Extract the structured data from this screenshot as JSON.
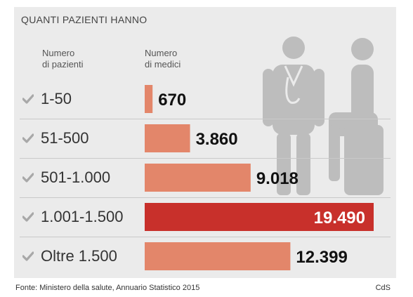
{
  "title": "QUANTI  PAZIENTI HANNO",
  "headers": {
    "patients": "Numero\ndi pazienti",
    "doctors": "Numero\ndi medici"
  },
  "chart_data": {
    "type": "bar",
    "orientation": "horizontal",
    "categories": [
      "1-50",
      "51-500",
      "501-1.000",
      "1.001-1.500",
      "Oltre 1.500"
    ],
    "values": [
      670,
      3860,
      9018,
      19490,
      12399
    ],
    "value_labels": [
      "670",
      "3.860",
      "9.018",
      "19.490",
      "12.399"
    ],
    "highlight_index": 3,
    "colors": {
      "bar": "#e3866a",
      "highlight": "#c8302b",
      "check": "#a8a8a8"
    }
  },
  "icons": [
    "checkmark-icon",
    "doctor-icon",
    "patient-icon"
  ],
  "source": "Fonte: Ministero della salute, Annuario Statistico 2015",
  "credit": "CdS"
}
